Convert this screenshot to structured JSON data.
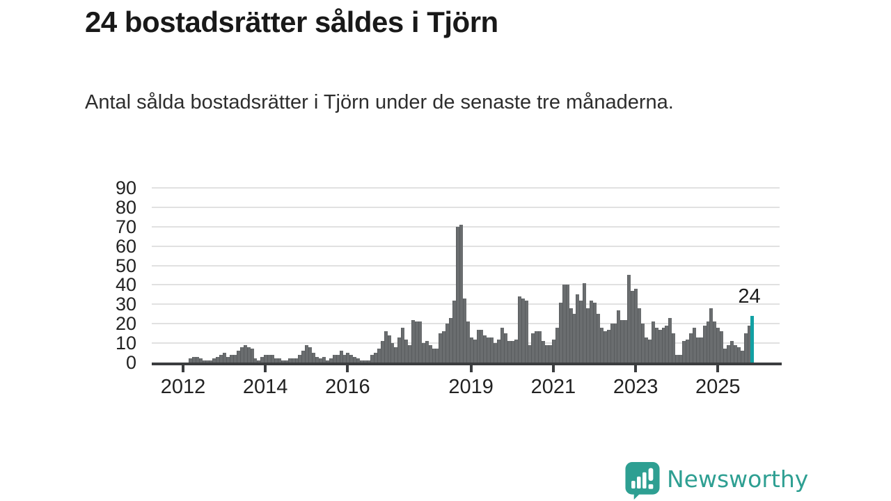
{
  "header": {
    "title": "24 bostadsrätter såldes i Tjörn",
    "subtitle": "Antal sålda bostadsrätter i Tjörn under de senaste tre månaderna."
  },
  "branding": {
    "name": "Newsworthy",
    "color": "#2e9f92"
  },
  "chart_data": {
    "type": "bar",
    "title": "24 bostadsrätter såldes i Tjörn",
    "xlabel": "",
    "ylabel": "",
    "frequency": "monthly",
    "x_start": "2012-03",
    "x_end": "2025-11",
    "x_tick_labels": [
      "2012",
      "2014",
      "2016",
      "2019",
      "2021",
      "2023",
      "2025"
    ],
    "x_tick_years": [
      2012,
      2014,
      2016,
      2019,
      2021,
      2023,
      2025
    ],
    "y_ticks": [
      0,
      10,
      20,
      30,
      40,
      50,
      60,
      70,
      80,
      90
    ],
    "ylim": [
      0,
      90
    ],
    "grid": "horizontal",
    "legend": "none",
    "bar_color": "#6a6d6f",
    "highlight_color": "#12a1a4",
    "highlight_index": "last",
    "annotation": {
      "text": "24",
      "value": 24
    },
    "values": [
      2,
      3,
      3,
      2,
      1,
      1,
      1,
      2,
      3,
      4,
      5,
      3,
      4,
      4,
      6,
      8,
      9,
      8,
      7,
      2,
      1,
      3,
      4,
      4,
      4,
      2,
      2,
      1,
      1,
      2,
      2,
      2,
      4,
      6,
      9,
      8,
      5,
      3,
      2,
      3,
      1,
      2,
      4,
      4,
      6,
      4,
      5,
      4,
      3,
      2,
      1,
      1,
      1,
      4,
      5,
      7,
      11,
      16,
      14,
      10,
      8,
      13,
      18,
      12,
      9,
      22,
      21,
      21,
      10,
      11,
      9,
      7,
      7,
      15,
      16,
      20,
      23,
      32,
      70,
      71,
      33,
      21,
      13,
      12,
      17,
      17,
      14,
      13,
      13,
      10,
      12,
      18,
      15,
      11,
      11,
      12,
      34,
      33,
      32,
      9,
      15,
      16,
      16,
      11,
      9,
      9,
      12,
      18,
      31,
      40,
      40,
      28,
      25,
      35,
      32,
      41,
      28,
      32,
      31,
      25,
      18,
      16,
      17,
      20,
      20,
      27,
      22,
      22,
      45,
      37,
      38,
      28,
      20,
      13,
      12,
      21,
      18,
      17,
      18,
      19,
      23,
      15,
      4,
      4,
      11,
      12,
      15,
      18,
      13,
      13,
      19,
      21,
      28,
      21,
      18,
      16,
      7,
      9,
      11,
      9,
      8,
      6,
      15,
      19,
      24
    ]
  }
}
